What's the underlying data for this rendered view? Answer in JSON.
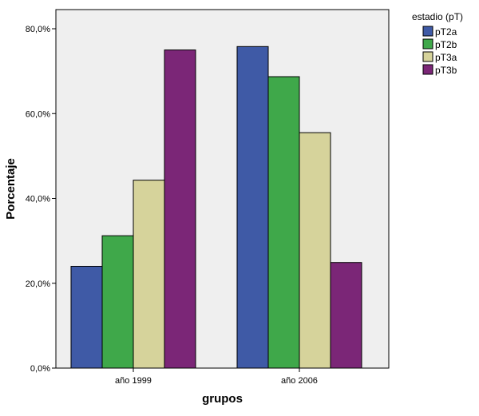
{
  "chart_data": {
    "type": "bar",
    "categories": [
      "año 1999",
      "año 2006"
    ],
    "series": [
      {
        "name": "pT2a",
        "color": "#3f5aa6",
        "values": [
          24.0,
          75.8
        ]
      },
      {
        "name": "pT2b",
        "color": "#3fa84a",
        "values": [
          31.2,
          68.7
        ]
      },
      {
        "name": "pT3a",
        "color": "#d6d39b",
        "values": [
          44.3,
          55.5
        ]
      },
      {
        "name": "pT3b",
        "color": "#7b2677",
        "values": [
          75.0,
          24.9
        ]
      }
    ],
    "title": "",
    "xlabel": "grupos",
    "ylabel": "Porcentaje",
    "ylim": [
      0,
      80
    ],
    "yticks": [
      0,
      20,
      40,
      60,
      80
    ],
    "ytick_labels": [
      "0,0%",
      "20,0%",
      "40,0%",
      "60,0%",
      "80,0%"
    ],
    "legend_title": "estadio (pT)",
    "legend_position": "top-right",
    "grid": false,
    "plot_background": "#efefef"
  }
}
